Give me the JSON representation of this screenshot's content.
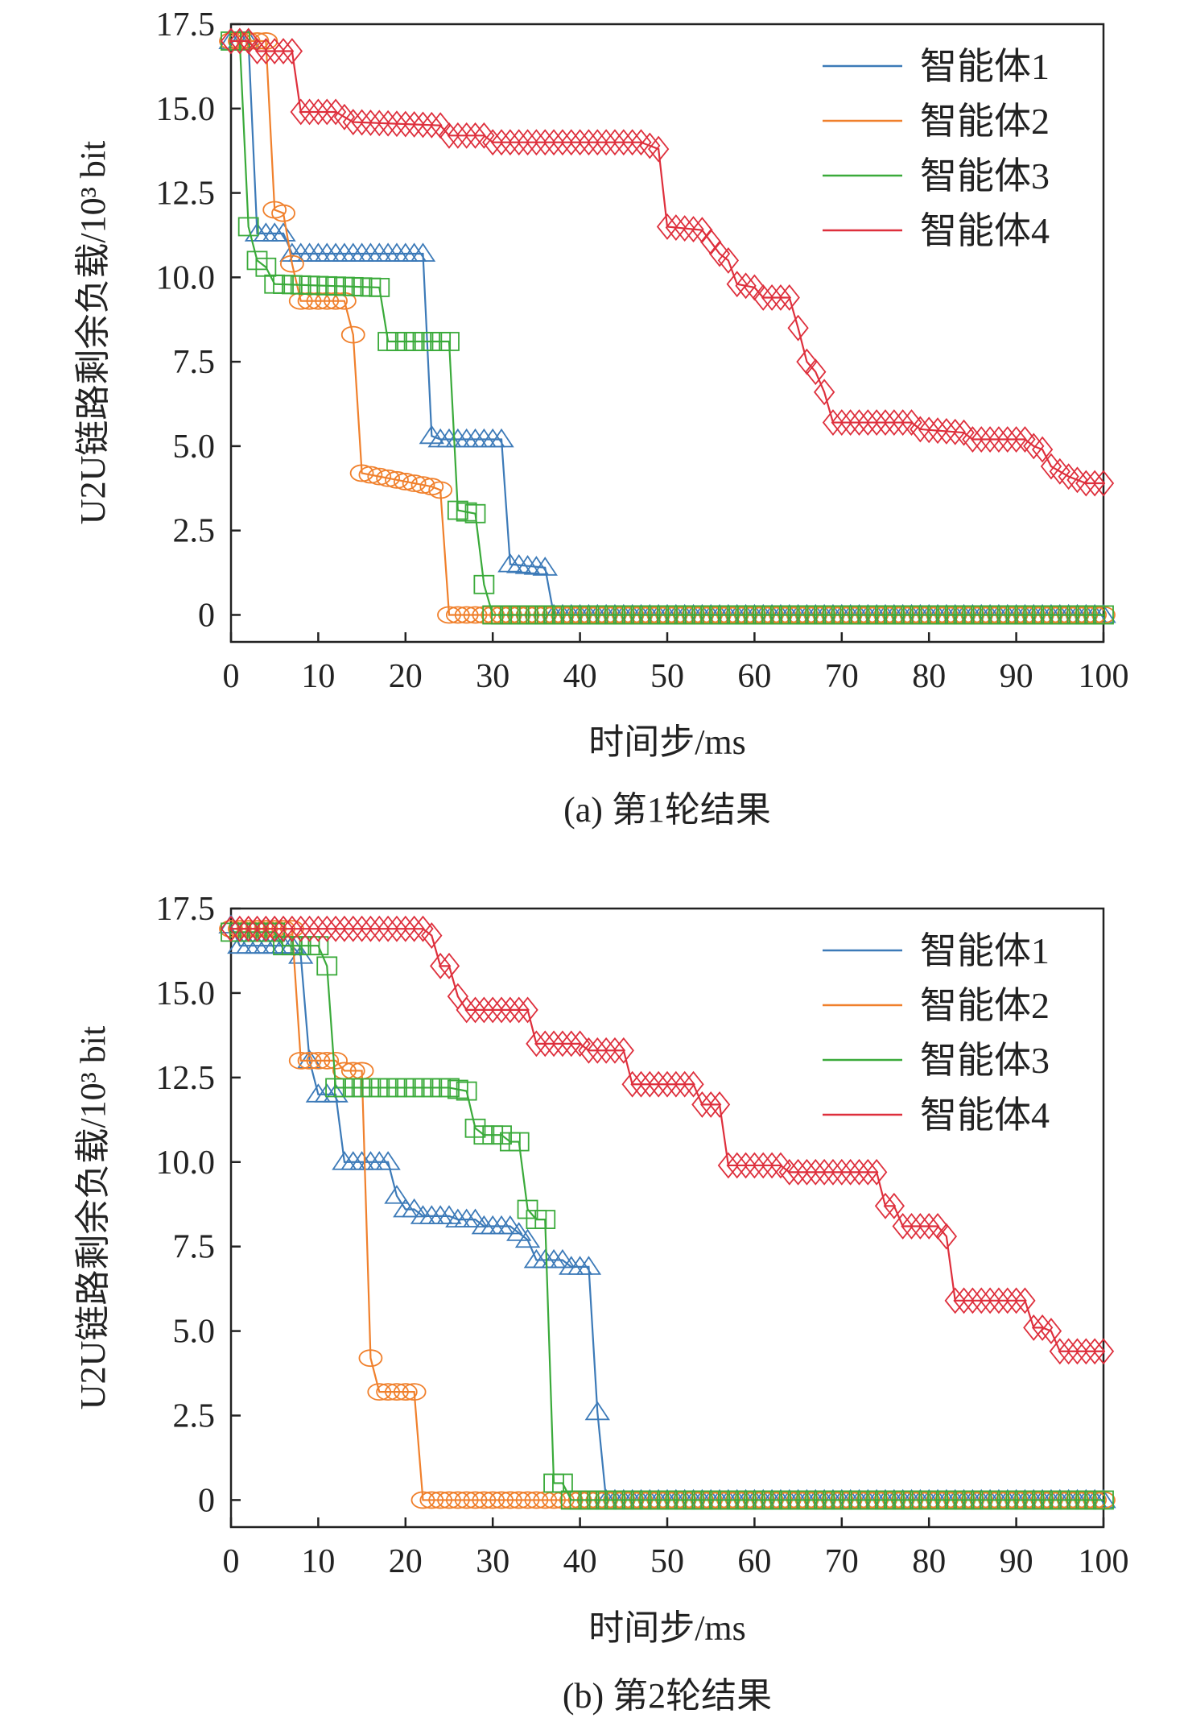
{
  "chart_data": [
    {
      "type": "line",
      "caption": "(a) 第1轮结果",
      "xlabel": "时间步/ms",
      "ylabel": "U2U链路剩余负载/10³ bit",
      "xlim": [
        0,
        100
      ],
      "ylim": [
        -0.8,
        17.5
      ],
      "xticks": [
        "0",
        "10",
        "20",
        "30",
        "40",
        "50",
        "60",
        "70",
        "80",
        "90",
        "100"
      ],
      "yticks": [
        "0",
        "2.5",
        "5.0",
        "7.5",
        "10.0",
        "12.5",
        "15.0",
        "17.5"
      ],
      "legend_position": "top-right",
      "series": [
        {
          "name": "智能体1",
          "color": "#3c7ab8",
          "marker": "triangle",
          "x": [
            0,
            2,
            3,
            6,
            7,
            22,
            23,
            24,
            31,
            32,
            36,
            37,
            100
          ],
          "y": [
            17,
            17,
            11.3,
            11.3,
            10.7,
            10.7,
            5.3,
            5.2,
            5.2,
            1.5,
            1.4,
            0,
            0
          ]
        },
        {
          "name": "智能体2",
          "color": "#f0802c",
          "marker": "circle",
          "x": [
            0,
            4,
            5,
            6,
            7,
            8,
            13,
            14,
            15,
            19,
            23,
            24,
            25,
            100
          ],
          "y": [
            17,
            17,
            12,
            11.9,
            10.4,
            9.3,
            9.3,
            8.3,
            4.2,
            4.0,
            3.8,
            3.7,
            0,
            0
          ]
        },
        {
          "name": "智能体3",
          "color": "#3aaa3a",
          "marker": "square",
          "x": [
            0,
            1,
            2,
            3,
            4,
            5,
            17,
            18,
            25,
            26,
            28,
            29,
            30,
            100
          ],
          "y": [
            17,
            17,
            11.5,
            10.5,
            10.3,
            9.8,
            9.7,
            8.1,
            8.1,
            3.1,
            3.0,
            0.9,
            0,
            0
          ]
        },
        {
          "name": "智能体4",
          "color": "#de2f3c",
          "marker": "diamond",
          "x": [
            0,
            2,
            3,
            7,
            8,
            12,
            14,
            24,
            25,
            29,
            30,
            47,
            49,
            50,
            54,
            56,
            57,
            58,
            60,
            61,
            64,
            65,
            66,
            67,
            68,
            69,
            78,
            79,
            84,
            85,
            91,
            92,
            93,
            94,
            96,
            98,
            100
          ],
          "y": [
            17,
            17,
            16.7,
            16.7,
            14.9,
            14.9,
            14.6,
            14.5,
            14.2,
            14.2,
            14.0,
            14.0,
            13.8,
            11.5,
            11.4,
            10.7,
            10.5,
            9.8,
            9.7,
            9.4,
            9.4,
            8.5,
            7.5,
            7.2,
            6.6,
            5.7,
            5.7,
            5.5,
            5.4,
            5.2,
            5.2,
            5.0,
            4.9,
            4.4,
            4.1,
            3.9,
            3.9
          ]
        }
      ]
    },
    {
      "type": "line",
      "caption": "(b) 第2轮结果",
      "xlabel": "时间步/ms",
      "ylabel": "U2U链路剩余负载/10³ bit",
      "xlim": [
        0,
        100
      ],
      "ylim": [
        -0.8,
        17.5
      ],
      "xticks": [
        "0",
        "10",
        "20",
        "30",
        "40",
        "50",
        "60",
        "70",
        "80",
        "90",
        "100"
      ],
      "yticks": [
        "0",
        "2.5",
        "5.0",
        "7.5",
        "10.0",
        "12.5",
        "15.0",
        "17.5"
      ],
      "legend_position": "top-right",
      "series": [
        {
          "name": "智能体1",
          "color": "#3c7ab8",
          "marker": "triangle",
          "x": [
            0,
            1,
            7,
            8,
            9,
            10,
            12,
            13,
            18,
            19,
            20,
            21,
            22,
            25,
            26,
            28,
            29,
            32,
            33,
            34,
            35,
            38,
            39,
            41,
            42,
            43,
            100
          ],
          "y": [
            17,
            16.4,
            16.4,
            16.1,
            13,
            12.0,
            12.0,
            10,
            10,
            9.0,
            8.6,
            8.6,
            8.4,
            8.4,
            8.3,
            8.3,
            8.1,
            8.1,
            7.9,
            7.7,
            7.1,
            7.1,
            6.9,
            6.9,
            2.6,
            0,
            0
          ]
        },
        {
          "name": "智能体2",
          "color": "#f0802c",
          "marker": "circle",
          "x": [
            0,
            7,
            8,
            12,
            13,
            15,
            16,
            17,
            21,
            22,
            100
          ],
          "y": [
            16.9,
            16.9,
            13,
            13,
            12.7,
            12.7,
            4.2,
            3.2,
            3.2,
            0,
            0
          ]
        },
        {
          "name": "智能体3",
          "color": "#3aaa3a",
          "marker": "square",
          "x": [
            0,
            5,
            6,
            10,
            11,
            12,
            25,
            27,
            28,
            29,
            31,
            32,
            33,
            34,
            35,
            36,
            37,
            38,
            39,
            100
          ],
          "y": [
            16.8,
            16.8,
            16.4,
            16.4,
            15.8,
            12.2,
            12.2,
            12.1,
            11.0,
            10.8,
            10.8,
            10.6,
            10.6,
            8.6,
            8.3,
            8.3,
            0.5,
            0.5,
            0,
            0
          ]
        },
        {
          "name": "智能体4",
          "color": "#de2f3c",
          "marker": "diamond",
          "x": [
            0,
            22,
            23,
            24,
            25,
            26,
            27,
            34,
            35,
            40,
            41,
            45,
            46,
            53,
            54,
            56,
            57,
            63,
            64,
            74,
            75,
            76,
            77,
            81,
            82,
            83,
            91,
            92,
            93,
            94,
            95,
            100
          ],
          "y": [
            16.9,
            16.9,
            16.7,
            15.8,
            15.8,
            14.9,
            14.5,
            14.5,
            13.5,
            13.5,
            13.3,
            13.3,
            12.3,
            12.3,
            11.7,
            11.7,
            9.9,
            9.9,
            9.7,
            9.7,
            8.7,
            8.7,
            8.1,
            8.1,
            7.8,
            5.9,
            5.9,
            5.1,
            5.1,
            5.0,
            4.4,
            4.4
          ]
        }
      ]
    }
  ]
}
